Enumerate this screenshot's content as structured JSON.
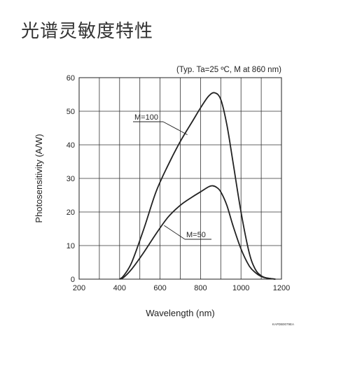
{
  "page": {
    "title": "光谱灵敏度特性"
  },
  "chart_data": {
    "type": "line",
    "conditions": "(Typ. Ta=25 ºC, M at 860 nm)",
    "xlabel": "Wavelength (nm)",
    "ylabel": "Photosensitivity (A/W)",
    "xlim": [
      200,
      1200
    ],
    "ylim": [
      0,
      60
    ],
    "xticks": [
      200,
      400,
      600,
      800,
      1000,
      1200
    ],
    "yticks": [
      0,
      10,
      20,
      30,
      40,
      50,
      60
    ],
    "grid": true,
    "figure_code": "KAPDB0079EA",
    "series": [
      {
        "name": "M=100",
        "x": [
          400,
          420,
          460,
          520,
          580,
          640,
          700,
          760,
          800,
          840,
          870,
          900,
          930,
          960,
          1000,
          1040,
          1070,
          1100,
          1130,
          1170
        ],
        "y": [
          0,
          1,
          5,
          15,
          26,
          34,
          41,
          47,
          51,
          54.5,
          55.5,
          53.5,
          46,
          35,
          20,
          8,
          3,
          1,
          0.3,
          0
        ]
      },
      {
        "name": "M=50",
        "x": [
          400,
          420,
          460,
          520,
          580,
          640,
          700,
          760,
          800,
          840,
          860,
          880,
          900,
          930,
          960,
          1000,
          1040,
          1070,
          1100,
          1130,
          1170
        ],
        "y": [
          0,
          0.5,
          3,
          8,
          13.5,
          18.5,
          22,
          24.5,
          26,
          27.5,
          27.8,
          27.3,
          26,
          22,
          16,
          9,
          4,
          2,
          0.8,
          0.3,
          0
        ]
      }
    ],
    "annotations": [
      {
        "text": "M=100",
        "series": "M=100",
        "target": [
          735,
          43
        ]
      },
      {
        "text": "M=50",
        "series": "M=50",
        "target": [
          620,
          16
        ]
      }
    ]
  }
}
